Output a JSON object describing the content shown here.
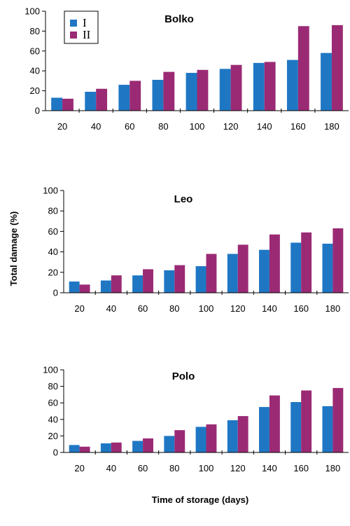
{
  "figure": {
    "ylabel": "Total damage (%)",
    "xlabel": "Time of storage (days)"
  },
  "legend": {
    "items": [
      {
        "label": "I",
        "color": "#1f77c4"
      },
      {
        "label": "II",
        "color": "#9b2a74"
      }
    ],
    "placement": "top-left of first panel"
  },
  "chart_data": [
    {
      "type": "bar",
      "title": "Bolko",
      "categories": [
        "20",
        "40",
        "60",
        "80",
        "100",
        "120",
        "140",
        "160",
        "180"
      ],
      "series": [
        {
          "name": "I",
          "values": [
            13,
            19,
            26,
            31,
            38,
            42,
            48,
            51,
            58
          ]
        },
        {
          "name": "II",
          "values": [
            12,
            22,
            30,
            39,
            41,
            46,
            49,
            85,
            86
          ]
        }
      ],
      "ylim": [
        0,
        100
      ],
      "yticks": [
        0,
        20,
        40,
        60,
        80,
        100
      ],
      "grid": false
    },
    {
      "type": "bar",
      "title": "Leo",
      "categories": [
        "20",
        "40",
        "60",
        "80",
        "100",
        "120",
        "140",
        "160",
        "180"
      ],
      "series": [
        {
          "name": "I",
          "values": [
            11,
            12,
            17,
            22,
            26,
            38,
            42,
            49,
            48
          ]
        },
        {
          "name": "II",
          "values": [
            8,
            17,
            23,
            27,
            38,
            47,
            57,
            59,
            63
          ]
        }
      ],
      "ylim": [
        0,
        100
      ],
      "yticks": [
        0,
        20,
        40,
        60,
        80,
        100
      ],
      "grid": false
    },
    {
      "type": "bar",
      "title": "Polo",
      "categories": [
        "20",
        "40",
        "60",
        "80",
        "100",
        "120",
        "140",
        "160",
        "180"
      ],
      "series": [
        {
          "name": "I",
          "values": [
            9,
            11,
            14,
            20,
            31,
            39,
            55,
            61,
            56
          ]
        },
        {
          "name": "II",
          "values": [
            7,
            12,
            17,
            27,
            34,
            44,
            69,
            75,
            78
          ]
        }
      ],
      "ylim": [
        0,
        100
      ],
      "yticks": [
        0,
        20,
        40,
        60,
        80,
        100
      ],
      "grid": false
    }
  ]
}
